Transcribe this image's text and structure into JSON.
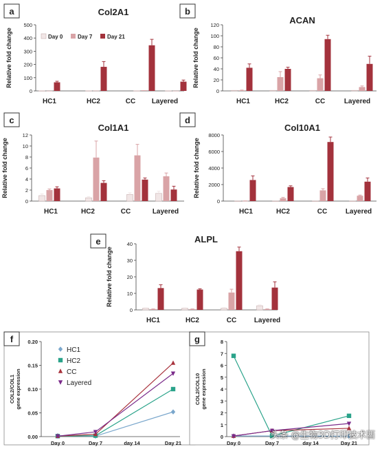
{
  "figure": {
    "watermark": "头条 @生物3D打印技术酉"
  },
  "chart_data": [
    {
      "panel": "a",
      "type": "bar",
      "title": "Col2A1",
      "ylabel": "Relative fold change",
      "ylim": [
        0,
        500
      ],
      "yticks": [
        0,
        100,
        200,
        300,
        400,
        500
      ],
      "categories": [
        "HC1",
        "HC2",
        "CC",
        "Layered"
      ],
      "legend": true,
      "series": [
        {
          "name": "Day 0",
          "values": [
            1,
            1,
            1,
            1
          ]
        },
        {
          "name": "Day 7",
          "values": [
            1,
            2,
            5,
            1
          ]
        },
        {
          "name": "Day 21",
          "values": [
            65,
            182,
            345,
            70
          ],
          "err": [
            8,
            40,
            45,
            12
          ]
        }
      ]
    },
    {
      "panel": "b",
      "type": "bar",
      "title": "ACAN",
      "ylabel": "Relative fold change",
      "ylim": [
        0,
        120
      ],
      "yticks": [
        0,
        20,
        40,
        60,
        80,
        100,
        120
      ],
      "categories": [
        "HC1",
        "HC2",
        "CC",
        "Layered"
      ],
      "series": [
        {
          "name": "Day 0",
          "values": [
            1,
            1,
            1,
            1
          ]
        },
        {
          "name": "Day 7",
          "values": [
            1,
            25,
            23,
            7
          ],
          "err": [
            0.5,
            10,
            6,
            2
          ]
        },
        {
          "name": "Day 21",
          "values": [
            42,
            40,
            94,
            49
          ],
          "err": [
            7,
            3,
            7,
            14
          ]
        }
      ]
    },
    {
      "panel": "c",
      "type": "bar",
      "title": "Col1A1",
      "ylabel": "Relative fold change",
      "ylim": [
        0,
        12
      ],
      "yticks": [
        0,
        2,
        4,
        6,
        8,
        10,
        12
      ],
      "categories": [
        "HC1",
        "HC2",
        "CC",
        "Layered"
      ],
      "series": [
        {
          "name": "Day 0",
          "values": [
            1.0,
            0.6,
            1.2,
            1.4
          ],
          "err": [
            0.3,
            0.2,
            0.3,
            0.4
          ]
        },
        {
          "name": "Day 7",
          "values": [
            2.0,
            7.9,
            8.3,
            4.5
          ],
          "err": [
            0.2,
            3.0,
            2.0,
            0.6
          ]
        },
        {
          "name": "Day 21",
          "values": [
            2.3,
            3.3,
            3.9,
            2.1
          ],
          "err": [
            0.3,
            0.4,
            0.3,
            0.6
          ]
        }
      ]
    },
    {
      "panel": "d",
      "type": "bar",
      "title": "Col10A1",
      "ylabel": "Relative fold change",
      "ylim": [
        0,
        8000
      ],
      "yticks": [
        0,
        2000,
        4000,
        6000,
        8000
      ],
      "categories": [
        "HC1",
        "HC2",
        "CC",
        "Layered"
      ],
      "series": [
        {
          "name": "Day 0",
          "values": [
            5,
            5,
            5,
            5
          ]
        },
        {
          "name": "Day 7",
          "values": [
            20,
            350,
            1300,
            650
          ],
          "err": [
            10,
            100,
            200,
            80
          ]
        },
        {
          "name": "Day 21",
          "values": [
            2550,
            1700,
            7150,
            2350
          ],
          "err": [
            500,
            150,
            600,
            450
          ]
        }
      ]
    },
    {
      "panel": "e",
      "type": "bar",
      "title": "ALPL",
      "ylabel": "Relative fold change",
      "ylim": [
        0,
        40
      ],
      "yticks": [
        0,
        10,
        20,
        30,
        40
      ],
      "categories": [
        "HC1",
        "HC2",
        "CC",
        "Layered"
      ],
      "series": [
        {
          "name": "Day 0",
          "values": [
            1.0,
            1.0,
            1.0,
            2.5
          ],
          "err": [
            0.2,
            0.2,
            0.3,
            0.5
          ]
        },
        {
          "name": "Day 7",
          "values": [
            0.5,
            0.5,
            10.5,
            0.5
          ],
          "err": [
            0.1,
            0.1,
            2.0,
            0.1
          ]
        },
        {
          "name": "Day 21",
          "values": [
            13.2,
            12.3,
            35.5,
            13.5
          ],
          "err": [
            2.0,
            0.5,
            2.5,
            3.5
          ]
        }
      ]
    },
    {
      "panel": "f",
      "type": "line",
      "ylabel": "COL2/COL1\ngene expression",
      "ylim": [
        0,
        0.2
      ],
      "yticks": [
        0,
        0.05,
        0.1,
        0.15,
        0.2
      ],
      "x": [
        "Day 0",
        "Day 7",
        "day 14",
        "Day 21"
      ],
      "series": [
        {
          "name": "HC1",
          "marker": "diamond",
          "values": [
            0.002,
            0.001,
            null,
            0.052
          ]
        },
        {
          "name": "HC2",
          "marker": "square",
          "values": [
            0.001,
            0.002,
            null,
            0.1
          ]
        },
        {
          "name": "CC",
          "marker": "triangle-up",
          "values": [
            0.001,
            0.005,
            null,
            0.155
          ]
        },
        {
          "name": "Layered",
          "marker": "triangle-down",
          "values": [
            0.001,
            0.01,
            null,
            0.133
          ]
        }
      ]
    },
    {
      "panel": "g",
      "type": "line",
      "ylabel": "COL2/COL10\ngene expression",
      "ylim": [
        0,
        8
      ],
      "yticks": [
        0,
        1,
        2,
        3,
        4,
        5,
        6,
        7,
        8
      ],
      "x": [
        "Day 0",
        "Day 7",
        "day 14",
        "Day 21"
      ],
      "series": [
        {
          "name": "HC1",
          "marker": "diamond",
          "values": [
            0.05,
            0.05,
            null,
            0.03
          ]
        },
        {
          "name": "HC2",
          "marker": "square",
          "values": [
            6.8,
            0.05,
            null,
            1.75
          ]
        },
        {
          "name": "CC",
          "marker": "triangle-up",
          "values": [
            0.05,
            0.5,
            null,
            0.7
          ]
        },
        {
          "name": "Layered",
          "marker": "triangle-down",
          "values": [
            0.05,
            0.5,
            null,
            1.1
          ]
        }
      ]
    }
  ],
  "colors": {
    "day0": "#f1e6e6",
    "day0_stroke": "#c9b0b0",
    "day7": "#d9a3a6",
    "day21": "#a3323c",
    "axis": "#444444",
    "text": "#222222",
    "HC1": "#7aa7cc",
    "HC2": "#2aa38a",
    "CC": "#a8323c",
    "Layered": "#7a2a8a"
  }
}
